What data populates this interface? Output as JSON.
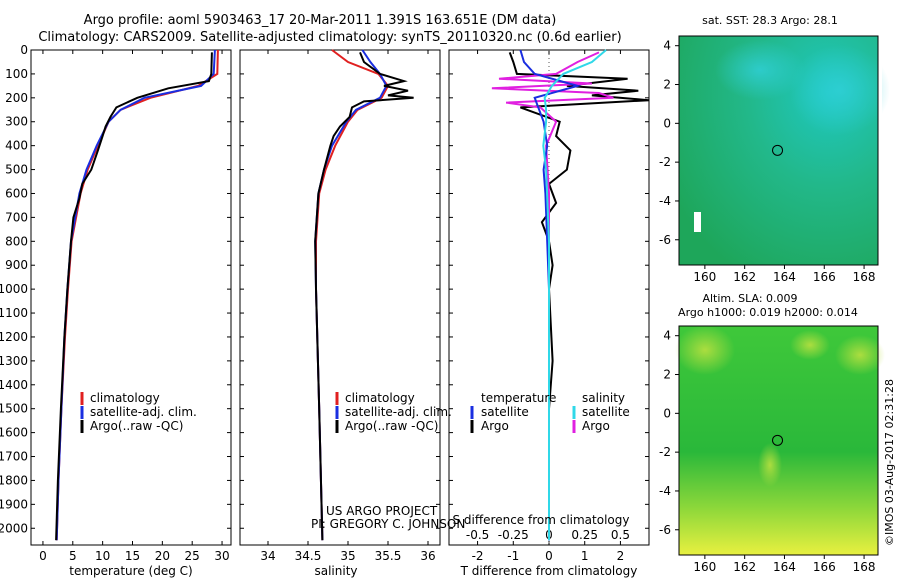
{
  "header": {
    "line1": "Argo profile: aoml 5903463_17 20-Mar-2011 1.391S 163.651E (DM data)",
    "line2": "Climatology: CARS2009. Satellite-adjusted climatology: synTS_20110320.nc (0.6d earlier)"
  },
  "credit": {
    "project": "US ARGO PROJECT",
    "pi": "PI: GREGORY C. JOHNSON",
    "imos": "©IMOS 03-Aug-2017 02:31:28"
  },
  "colors": {
    "climatology": "#e02020",
    "satellite": "#1a2ee0",
    "argo": "#000000",
    "sat_salinity": "#30d8e8",
    "argo_salinity": "#e020e0"
  },
  "chart_data": [
    {
      "type": "line",
      "title": "",
      "xlabel": "temperature (deg C)",
      "ylabel": "",
      "xlim": [
        -2,
        31.5
      ],
      "ylim": [
        2070,
        0
      ],
      "xticks": [
        "0",
        "5",
        "10",
        "15",
        "20",
        "25",
        "30"
      ],
      "yticks": [
        "0",
        "100",
        "200",
        "300",
        "400",
        "500",
        "600",
        "700",
        "800",
        "900",
        "1000",
        "1100",
        "1200",
        "1300",
        "1400",
        "1500",
        "1600",
        "1700",
        "1800",
        "1900",
        "2000"
      ],
      "legend": [
        "climatology",
        "satellite-adj. clim.",
        "Argo(..raw -QC)"
      ],
      "series": [
        {
          "name": "climatology",
          "depth": [
            0,
            100,
            150,
            200,
            250,
            300,
            400,
            500,
            600,
            800,
            1000,
            1200,
            1500,
            1800,
            2050
          ],
          "values": [
            29.3,
            29.2,
            26,
            18,
            13,
            11,
            9.2,
            7.5,
            6.3,
            4.8,
            4.2,
            3.7,
            3.1,
            2.6,
            2.3
          ]
        },
        {
          "name": "satellite-adj. clim.",
          "depth": [
            0,
            100,
            150,
            200,
            250,
            300,
            400,
            500,
            600,
            800,
            1000,
            1200,
            1500,
            1800,
            2050
          ],
          "values": [
            28.8,
            28.6,
            26.5,
            17,
            13,
            11,
            9,
            7.3,
            6.1,
            4.7,
            4.1,
            3.6,
            3.1,
            2.6,
            2.3
          ]
        },
        {
          "name": "Argo(..raw -QC)",
          "depth": [
            10,
            100,
            130,
            160,
            200,
            240,
            280,
            320,
            360,
            420,
            500,
            560,
            620,
            700,
            800,
            1000,
            1200,
            1500,
            1800,
            2050
          ],
          "values": [
            28.3,
            28.2,
            27.8,
            21,
            15.8,
            12.3,
            11.3,
            10.5,
            10,
            9.2,
            8.1,
            6.6,
            6.1,
            5.1,
            4.7,
            4.1,
            3.6,
            3.0,
            2.5,
            2.2
          ]
        }
      ]
    },
    {
      "type": "line",
      "xlabel": "salinity",
      "xlim": [
        33.65,
        36.15
      ],
      "ylim": [
        2070,
        0
      ],
      "xticks": [
        "34",
        "34.5",
        "35",
        "35.5",
        "36"
      ],
      "legend": [
        "climatology",
        "satellite-adj. clim.",
        "Argo(..raw -QC)"
      ],
      "series": [
        {
          "name": "climatology",
          "depth": [
            0,
            50,
            100,
            150,
            200,
            250,
            300,
            400,
            500,
            600,
            800,
            1000,
            1500,
            2050
          ],
          "values": [
            34.8,
            35.0,
            35.38,
            35.5,
            35.42,
            35.12,
            35.0,
            34.84,
            34.72,
            34.64,
            34.6,
            34.6,
            34.64,
            34.68
          ]
        },
        {
          "name": "satellite-adj. clim.",
          "depth": [
            0,
            50,
            100,
            150,
            200,
            250,
            300,
            400,
            500,
            600,
            800,
            1000,
            1500,
            2050
          ],
          "values": [
            35.18,
            35.28,
            35.4,
            35.48,
            35.4,
            35.1,
            34.98,
            34.8,
            34.7,
            34.63,
            34.59,
            34.6,
            34.64,
            34.68
          ]
        },
        {
          "name": "Argo(..raw -QC)",
          "depth": [
            10,
            50,
            100,
            130,
            150,
            170,
            190,
            200,
            215,
            240,
            280,
            320,
            360,
            400,
            500,
            600,
            800,
            1000,
            1500,
            2050
          ],
          "values": [
            35.15,
            35.2,
            35.4,
            35.7,
            35.45,
            35.75,
            35.5,
            35.82,
            35.2,
            35.05,
            35.02,
            34.9,
            34.82,
            34.78,
            34.7,
            34.63,
            34.59,
            34.6,
            34.64,
            34.68
          ]
        }
      ]
    },
    {
      "type": "line",
      "xlabel": "T difference from climatology",
      "xlabel_top": "S difference from climatology",
      "xlim": [
        -2.8,
        2.8
      ],
      "ylim": [
        2070,
        0
      ],
      "xticks": [
        "-2",
        "-1",
        "0",
        "1",
        "2"
      ],
      "xticks_s": [
        "-0.5",
        "-0.25",
        "0",
        "0.25",
        "0.5"
      ],
      "legend_titles": [
        "temperature",
        "salinity"
      ],
      "legend": [
        "satellite",
        "Argo",
        "satellite",
        "Argo"
      ],
      "series": [
        {
          "name": "temperature satellite",
          "depth": [
            0,
            50,
            100,
            150,
            200,
            300,
            400,
            500,
            600,
            800,
            1000,
            1500,
            2050
          ],
          "values": [
            -0.8,
            -0.7,
            -0.4,
            0.8,
            -0.4,
            -0.15,
            -0.05,
            -0.15,
            -0.1,
            -0.05,
            0,
            0,
            0
          ]
        },
        {
          "name": "temperature Argo",
          "depth": [
            10,
            50,
            100,
            120,
            150,
            170,
            190,
            210,
            240,
            300,
            360,
            420,
            500,
            560,
            640,
            720,
            800,
            900,
            1000,
            1300,
            1500,
            1800,
            2050
          ],
          "values": [
            -1.1,
            -1,
            -0.9,
            2.2,
            0.5,
            2.5,
            1.2,
            2.8,
            -0.8,
            0.3,
            0.2,
            0.6,
            0.5,
            0,
            0.2,
            -0.2,
            0,
            0.1,
            0,
            0.1,
            0,
            0,
            0
          ]
        },
        {
          "name": "salinity satellite",
          "depth": [
            0,
            50,
            100,
            150,
            200,
            250,
            300,
            400,
            500,
            800,
            1000,
            1500,
            2050
          ],
          "values": [
            0.4,
            0.3,
            0.1,
            0.02,
            -0.03,
            -0.02,
            -0.02,
            -0.04,
            -0.02,
            0,
            0,
            0,
            0
          ]
        },
        {
          "name": "salinity Argo",
          "depth": [
            10,
            50,
            100,
            120,
            140,
            160,
            180,
            200,
            220,
            240,
            300,
            400,
            600,
            1000,
            1500,
            2050
          ],
          "values": [
            0.35,
            0.2,
            0.05,
            -0.35,
            0.3,
            -0.4,
            0.35,
            0.45,
            -0.3,
            -0.06,
            0.05,
            -0.02,
            0,
            0,
            0,
            0
          ]
        }
      ]
    },
    {
      "type": "heatmap",
      "title": "sat. SST: 28.3 Argo: 28.1",
      "xlim": [
        158.7,
        168.7
      ],
      "ylim": [
        -7.3,
        4.5
      ],
      "xticks": [
        "160",
        "162",
        "164",
        "166",
        "168"
      ],
      "yticks": [
        "4",
        "2",
        "0",
        "-2",
        "-4",
        "-6"
      ],
      "marker": {
        "lon": 163.651,
        "lat": -1.391
      }
    },
    {
      "type": "heatmap",
      "title": "Altim. SLA: 0.009",
      "subtitle": "Argo h1000: 0.019 h2000: 0.014",
      "xlim": [
        158.7,
        168.7
      ],
      "ylim": [
        -7.3,
        4.5
      ],
      "xticks": [
        "160",
        "162",
        "164",
        "166",
        "168"
      ],
      "yticks": [
        "4",
        "2",
        "0",
        "-2",
        "-4",
        "-6"
      ],
      "marker": {
        "lon": 163.651,
        "lat": -1.391
      }
    }
  ]
}
